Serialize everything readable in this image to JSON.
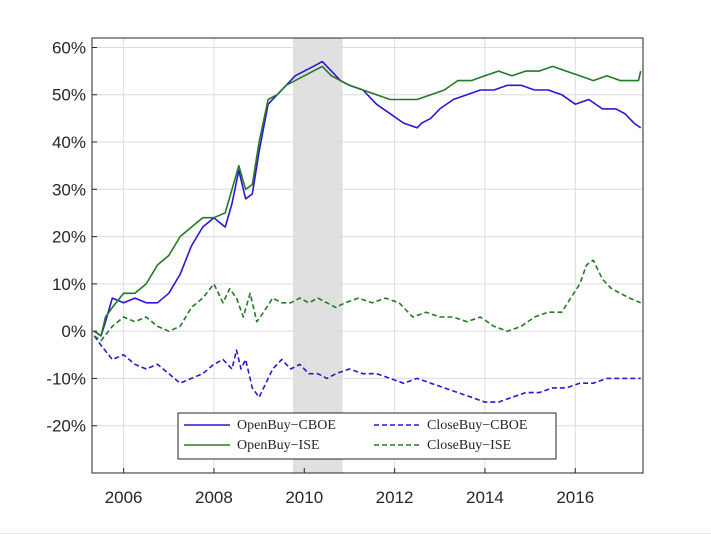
{
  "chart_data": {
    "type": "line",
    "title": "",
    "xlabel": "",
    "ylabel": "",
    "xlim": [
      2005.3,
      2017.5
    ],
    "ylim": [
      -30,
      62
    ],
    "x_ticks": [
      2006,
      2008,
      2010,
      2012,
      2014,
      2016
    ],
    "x_tick_labels": [
      "2006",
      "2008",
      "2010",
      "2012",
      "2014",
      "2016"
    ],
    "y_ticks": [
      60,
      50,
      40,
      30,
      20,
      10,
      0,
      -10,
      -20
    ],
    "y_tick_labels": [
      "60%",
      "50%",
      "40%",
      "30%",
      "20%",
      "10%",
      "0%",
      "-10%",
      "-20%"
    ],
    "grid": true,
    "legend_position": "bottom-center",
    "shaded_region": [
      2009.75,
      2010.85
    ],
    "colors": {
      "blue": "#2f13d6",
      "green": "#237a23",
      "shade": "#e0e0e0"
    },
    "series": [
      {
        "name": "OpenBuy−CBOE",
        "color": "#2f13d6",
        "style": "solid",
        "x": [
          2005.35,
          2005.5,
          2005.6,
          2005.75,
          2006.0,
          2006.25,
          2006.5,
          2006.75,
          2007.0,
          2007.25,
          2007.5,
          2007.75,
          2008.0,
          2008.25,
          2008.4,
          2008.55,
          2008.7,
          2008.85,
          2009.0,
          2009.2,
          2009.4,
          2009.6,
          2009.8,
          2010.0,
          2010.2,
          2010.4,
          2010.6,
          2010.8,
          2011.0,
          2011.3,
          2011.6,
          2011.9,
          2012.2,
          2012.5,
          2012.6,
          2012.8,
          2013.0,
          2013.3,
          2013.6,
          2013.9,
          2014.2,
          2014.5,
          2014.8,
          2015.1,
          2015.4,
          2015.7,
          2016.0,
          2016.3,
          2016.6,
          2016.9,
          2017.1,
          2017.3,
          2017.45
        ],
        "y": [
          0,
          -1,
          2,
          7,
          6,
          7,
          6,
          6,
          8,
          12,
          18,
          22,
          24,
          22,
          27,
          34,
          28,
          29,
          38,
          48,
          50,
          52,
          54,
          55,
          56,
          57,
          55,
          53,
          52,
          51,
          48,
          46,
          44,
          43,
          44,
          45,
          47,
          49,
          50,
          51,
          51,
          52,
          52,
          51,
          51,
          50,
          48,
          49,
          47,
          47,
          46,
          44,
          43
        ]
      },
      {
        "name": "OpenBuy−ISE",
        "color": "#237a23",
        "style": "solid",
        "x": [
          2005.35,
          2005.5,
          2005.6,
          2005.75,
          2006.0,
          2006.25,
          2006.5,
          2006.75,
          2007.0,
          2007.25,
          2007.5,
          2007.75,
          2008.0,
          2008.25,
          2008.4,
          2008.55,
          2008.7,
          2008.85,
          2009.0,
          2009.2,
          2009.4,
          2009.6,
          2009.8,
          2010.0,
          2010.2,
          2010.4,
          2010.6,
          2010.8,
          2011.0,
          2011.3,
          2011.6,
          2011.9,
          2012.2,
          2012.5,
          2012.8,
          2013.1,
          2013.4,
          2013.7,
          2014.0,
          2014.3,
          2014.6,
          2014.9,
          2015.2,
          2015.5,
          2015.8,
          2016.1,
          2016.4,
          2016.7,
          2017.0,
          2017.2,
          2017.4,
          2017.45
        ],
        "y": [
          0,
          -1,
          3,
          5,
          8,
          8,
          10,
          14,
          16,
          20,
          22,
          24,
          24,
          25,
          30,
          35,
          30,
          31,
          40,
          49,
          50,
          52,
          53,
          54,
          55,
          56,
          54,
          53,
          52,
          51,
          50,
          49,
          49,
          49,
          50,
          51,
          53,
          53,
          54,
          55,
          54,
          55,
          55,
          56,
          55,
          54,
          53,
          54,
          53,
          53,
          53,
          55
        ]
      },
      {
        "name": "CloseBuy−CBOE",
        "color": "#2f13d6",
        "style": "dashed",
        "x": [
          2005.35,
          2005.5,
          2005.75,
          2006.0,
          2006.25,
          2006.5,
          2006.75,
          2007.0,
          2007.25,
          2007.5,
          2007.75,
          2008.0,
          2008.2,
          2008.4,
          2008.5,
          2008.6,
          2008.7,
          2008.85,
          2009.0,
          2009.15,
          2009.3,
          2009.5,
          2009.7,
          2009.9,
          2010.1,
          2010.3,
          2010.5,
          2010.7,
          2011.0,
          2011.3,
          2011.6,
          2011.9,
          2012.2,
          2012.5,
          2012.8,
          2013.1,
          2013.4,
          2013.7,
          2014.0,
          2014.3,
          2014.6,
          2014.9,
          2015.2,
          2015.5,
          2015.8,
          2016.1,
          2016.4,
          2016.7,
          2017.0,
          2017.3,
          2017.45
        ],
        "y": [
          -1,
          -3,
          -6,
          -5,
          -7,
          -8,
          -7,
          -9,
          -11,
          -10,
          -9,
          -7,
          -6,
          -8,
          -4,
          -8,
          -6,
          -12,
          -14,
          -11,
          -8,
          -6,
          -8,
          -7,
          -9,
          -9,
          -10,
          -9,
          -8,
          -9,
          -9,
          -10,
          -11,
          -10,
          -11,
          -12,
          -13,
          -14,
          -15,
          -15,
          -14,
          -13,
          -13,
          -12,
          -12,
          -11,
          -11,
          -10,
          -10,
          -10,
          -10
        ]
      },
      {
        "name": "CloseBuy−ISE",
        "color": "#237a23",
        "style": "dashed",
        "x": [
          2005.35,
          2005.5,
          2005.75,
          2006.0,
          2006.25,
          2006.5,
          2006.75,
          2007.0,
          2007.25,
          2007.5,
          2007.75,
          2008.0,
          2008.2,
          2008.35,
          2008.5,
          2008.65,
          2008.8,
          2008.95,
          2009.1,
          2009.3,
          2009.5,
          2009.7,
          2009.9,
          2010.1,
          2010.3,
          2010.5,
          2010.7,
          2010.9,
          2011.2,
          2011.5,
          2011.8,
          2012.1,
          2012.4,
          2012.7,
          2013.0,
          2013.3,
          2013.6,
          2013.9,
          2014.2,
          2014.5,
          2014.8,
          2015.1,
          2015.4,
          2015.7,
          2015.9,
          2016.1,
          2016.25,
          2016.4,
          2016.6,
          2016.8,
          2017.0,
          2017.2,
          2017.45
        ],
        "y": [
          -1,
          -2,
          1,
          3,
          2,
          3,
          1,
          0,
          1,
          5,
          7,
          10,
          6,
          9,
          7,
          3,
          8,
          2,
          4,
          7,
          6,
          6,
          7,
          6,
          7,
          6,
          5,
          6,
          7,
          6,
          7,
          6,
          3,
          4,
          3,
          3,
          2,
          3,
          1,
          0,
          1,
          3,
          4,
          4,
          7,
          10,
          14,
          15,
          11,
          9,
          8,
          7,
          6
        ]
      }
    ]
  }
}
